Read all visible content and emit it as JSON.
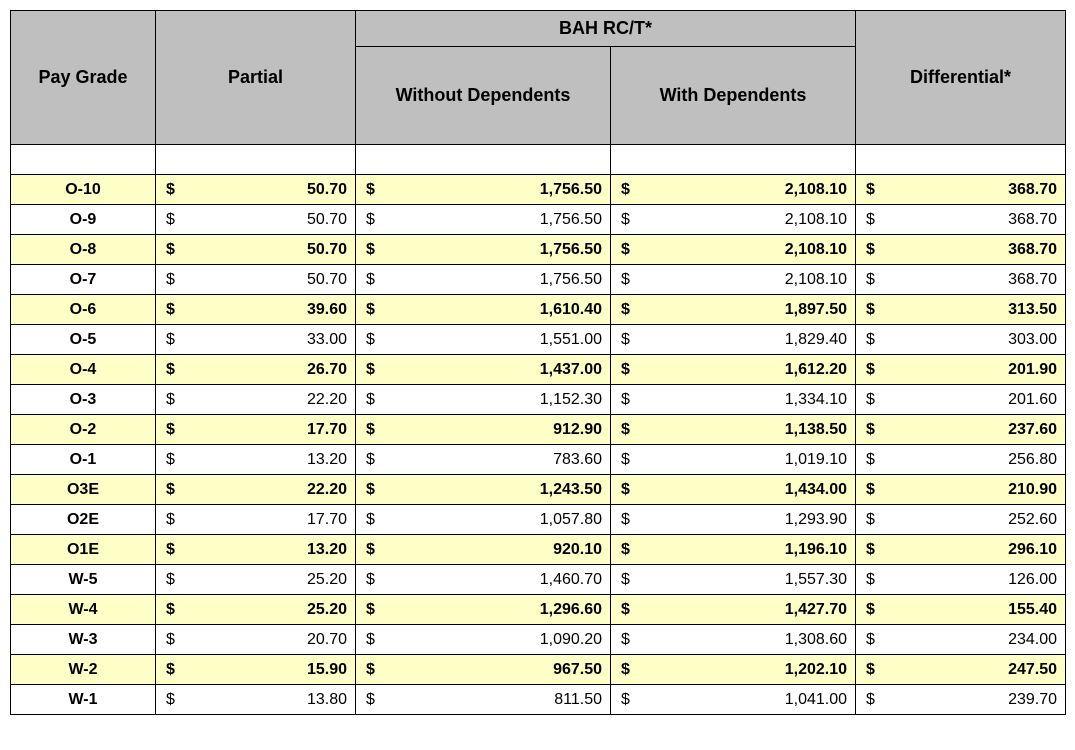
{
  "table": {
    "type": "table",
    "header_bg": "#bfbfbf",
    "row_alt_bg": "#feffc6",
    "row_bg": "#ffffff",
    "border_color": "#000000",
    "columns": {
      "pay_grade": "Pay Grade",
      "partial": "Partial",
      "bah_group": "BAH RC/T*",
      "without_dep": "Without Dependents",
      "with_dep": "With Dependents",
      "differential": "Differential*"
    },
    "currency_symbol": "$",
    "rows": [
      {
        "grade": "O-10",
        "partial": "50.70",
        "without": "1,756.50",
        "with": "2,108.10",
        "diff": "368.70",
        "shade": "yellow"
      },
      {
        "grade": "O-9",
        "partial": "50.70",
        "without": "1,756.50",
        "with": "2,108.10",
        "diff": "368.70",
        "shade": "white"
      },
      {
        "grade": "O-8",
        "partial": "50.70",
        "without": "1,756.50",
        "with": "2,108.10",
        "diff": "368.70",
        "shade": "yellow"
      },
      {
        "grade": "O-7",
        "partial": "50.70",
        "without": "1,756.50",
        "with": "2,108.10",
        "diff": "368.70",
        "shade": "white"
      },
      {
        "grade": "O-6",
        "partial": "39.60",
        "without": "1,610.40",
        "with": "1,897.50",
        "diff": "313.50",
        "shade": "yellow"
      },
      {
        "grade": "O-5",
        "partial": "33.00",
        "without": "1,551.00",
        "with": "1,829.40",
        "diff": "303.00",
        "shade": "white"
      },
      {
        "grade": "O-4",
        "partial": "26.70",
        "without": "1,437.00",
        "with": "1,612.20",
        "diff": "201.90",
        "shade": "yellow"
      },
      {
        "grade": "O-3",
        "partial": "22.20",
        "without": "1,152.30",
        "with": "1,334.10",
        "diff": "201.60",
        "shade": "white"
      },
      {
        "grade": "O-2",
        "partial": "17.70",
        "without": "912.90",
        "with": "1,138.50",
        "diff": "237.60",
        "shade": "yellow"
      },
      {
        "grade": "O-1",
        "partial": "13.20",
        "without": "783.60",
        "with": "1,019.10",
        "diff": "256.80",
        "shade": "white"
      },
      {
        "grade": "O3E",
        "partial": "22.20",
        "without": "1,243.50",
        "with": "1,434.00",
        "diff": "210.90",
        "shade": "yellow"
      },
      {
        "grade": "O2E",
        "partial": "17.70",
        "without": "1,057.80",
        "with": "1,293.90",
        "diff": "252.60",
        "shade": "white"
      },
      {
        "grade": "O1E",
        "partial": "13.20",
        "without": "920.10",
        "with": "1,196.10",
        "diff": "296.10",
        "shade": "yellow"
      },
      {
        "grade": "W-5",
        "partial": "25.20",
        "without": "1,460.70",
        "with": "1,557.30",
        "diff": "126.00",
        "shade": "white"
      },
      {
        "grade": "W-4",
        "partial": "25.20",
        "without": "1,296.60",
        "with": "1,427.70",
        "diff": "155.40",
        "shade": "yellow"
      },
      {
        "grade": "W-3",
        "partial": "20.70",
        "without": "1,090.20",
        "with": "1,308.60",
        "diff": "234.00",
        "shade": "white"
      },
      {
        "grade": "W-2",
        "partial": "15.90",
        "without": "967.50",
        "with": "1,202.10",
        "diff": "247.50",
        "shade": "yellow"
      },
      {
        "grade": "W-1",
        "partial": "13.80",
        "without": "811.50",
        "with": "1,041.00",
        "diff": "239.70",
        "shade": "white"
      }
    ]
  }
}
